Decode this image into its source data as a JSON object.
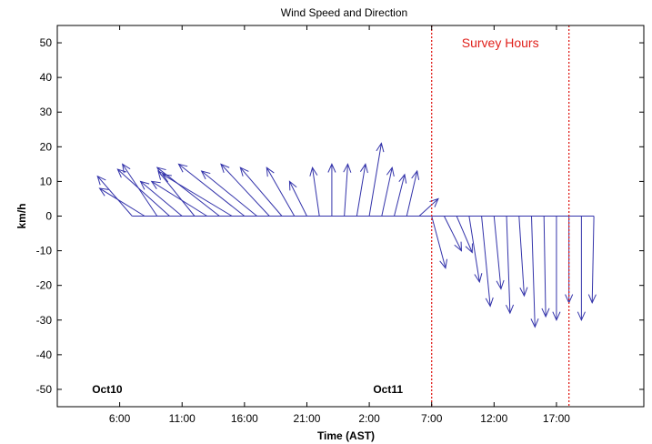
{
  "chart_data": {
    "type": "quiver",
    "title": "Wind Speed and Direction",
    "xlabel": "Time (AST)",
    "ylabel": "km/h",
    "x_unit": "hours from Oct10 00:00",
    "xlim": [
      1,
      48
    ],
    "ylim": [
      -55,
      55
    ],
    "y_ticks": [
      50,
      40,
      30,
      20,
      10,
      0,
      -10,
      -20,
      -30,
      -40,
      -50
    ],
    "x_ticks": [
      {
        "x": 6,
        "label": "6:00"
      },
      {
        "x": 11,
        "label": "11:00"
      },
      {
        "x": 16,
        "label": "16:00"
      },
      {
        "x": 21,
        "label": "21:00"
      },
      {
        "x": 26,
        "label": "2:00"
      },
      {
        "x": 31,
        "label": "7:00"
      },
      {
        "x": 36,
        "label": "12:00"
      },
      {
        "x": 41,
        "label": "17:00"
      }
    ],
    "grid": false,
    "annotations": [
      {
        "text": "Oct10",
        "x": 5,
        "y": -50
      },
      {
        "text": "Oct11",
        "x": 27.5,
        "y": -50
      }
    ],
    "survey_window": {
      "label": "Survey Hours",
      "start": 31,
      "end": 42,
      "color": "#e0201b"
    },
    "arrow_color": "#3333aa",
    "vectors": [
      {
        "x": 7,
        "u": -10,
        "v": 11.5
      },
      {
        "x": 8,
        "u": -13,
        "v": 8
      },
      {
        "x": 9,
        "u": -10,
        "v": 15
      },
      {
        "x": 10,
        "u": -15,
        "v": 13.5
      },
      {
        "x": 11,
        "u": -12,
        "v": 10
      },
      {
        "x": 12,
        "u": -10.5,
        "v": 13
      },
      {
        "x": 13,
        "u": -16,
        "v": 10
      },
      {
        "x": 14,
        "u": -18,
        "v": 14
      },
      {
        "x": 15,
        "u": -20,
        "v": 12
      },
      {
        "x": 16,
        "u": -19,
        "v": 15
      },
      {
        "x": 17,
        "u": -16,
        "v": 13
      },
      {
        "x": 18,
        "u": -14,
        "v": 15
      },
      {
        "x": 19,
        "u": -12,
        "v": 14
      },
      {
        "x": 20,
        "u": -8,
        "v": 14
      },
      {
        "x": 21,
        "u": -5,
        "v": 10
      },
      {
        "x": 22,
        "u": -2,
        "v": 14
      },
      {
        "x": 23,
        "u": 0,
        "v": 15
      },
      {
        "x": 24,
        "u": 1,
        "v": 15
      },
      {
        "x": 25,
        "u": 2.5,
        "v": 15
      },
      {
        "x": 26,
        "u": 3.5,
        "v": 21
      },
      {
        "x": 27,
        "u": 3,
        "v": 14
      },
      {
        "x": 28,
        "u": 3,
        "v": 12
      },
      {
        "x": 29,
        "u": 3,
        "v": 13
      },
      {
        "x": 30,
        "u": 5.5,
        "v": 5
      },
      {
        "x": 31,
        "u": 4,
        "v": -15
      },
      {
        "x": 32,
        "u": 5,
        "v": -10
      },
      {
        "x": 33,
        "u": 4.5,
        "v": -10.5
      },
      {
        "x": 34,
        "u": 3,
        "v": -19
      },
      {
        "x": 35,
        "u": 2.5,
        "v": -26
      },
      {
        "x": 36,
        "u": 2,
        "v": -21
      },
      {
        "x": 37,
        "u": 1,
        "v": -28
      },
      {
        "x": 38,
        "u": 1.5,
        "v": -23
      },
      {
        "x": 39,
        "u": 1,
        "v": -32
      },
      {
        "x": 40,
        "u": 0.5,
        "v": -29
      },
      {
        "x": 41,
        "u": 0,
        "v": -30
      },
      {
        "x": 42,
        "u": 0,
        "v": -25
      },
      {
        "x": 43,
        "u": 0,
        "v": -30
      },
      {
        "x": 44,
        "u": -0.5,
        "v": -25
      }
    ]
  }
}
